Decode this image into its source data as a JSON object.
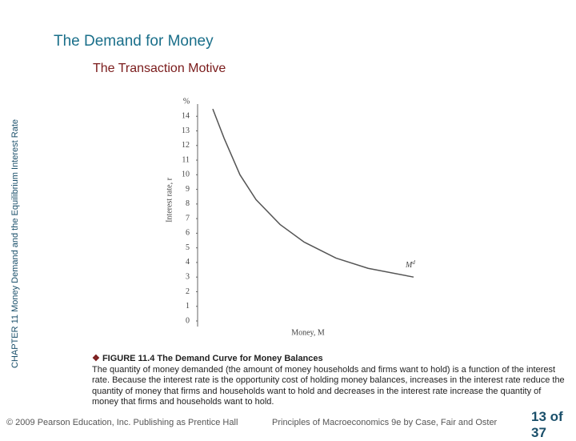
{
  "slide": {
    "title": "The Demand for Money",
    "subtitle": "The Transaction Motive",
    "side_text": "CHAPTER 11  Money Demand and the Equilibrium Interest Rate",
    "figure_label": "FIGURE 11.4  The Demand Curve for Money Balances",
    "caption": "The quantity of money demanded (the amount of money households and firms want to hold) is a function of the interest rate. Because the interest rate is the opportunity cost of holding money balances, increases in the interest rate reduce the quantity of money that firms and households want to hold and decreases in the interest rate increase the quantity of money that firms and households want to hold.",
    "copyright": "© 2009 Pearson Education, Inc. Publishing as Prentice Hall",
    "book": "Principles of Macroeconomics 9e by Case, Fair and Oster",
    "page": "13 of 37"
  },
  "chart_data": {
    "type": "line",
    "x_label": "Money, M",
    "y_label": "Interest rate, r",
    "y_unit": "%",
    "curve_label": "M",
    "curve_label_sup": "d",
    "x": [
      0.67,
      1.17,
      1.87,
      2.58,
      3.64,
      4.7,
      6.11,
      7.53,
      9.54
    ],
    "series": [
      {
        "name": "Md",
        "color": "#555555",
        "values": [
          14.5,
          12.5,
          10,
          8.3,
          6.6,
          5.4,
          4.3,
          3.6,
          3.0
        ]
      }
    ],
    "xlim": [
      0,
      10
    ],
    "ylim": [
      0,
      15
    ],
    "yticks": [
      0,
      1,
      2,
      3,
      4,
      5,
      6,
      7,
      8,
      9,
      10,
      11,
      12,
      13,
      14
    ]
  }
}
